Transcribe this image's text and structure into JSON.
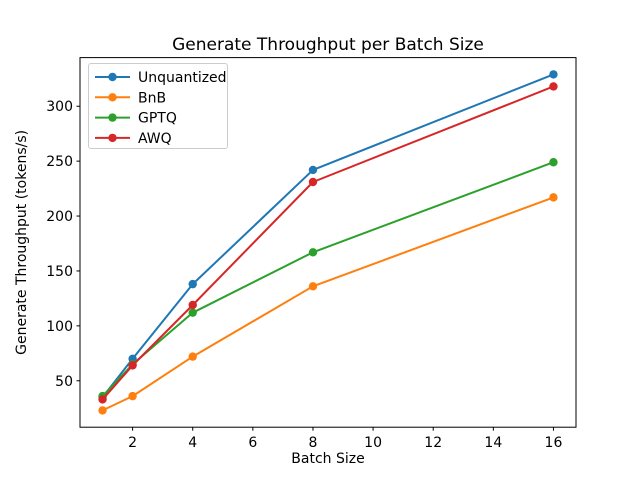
{
  "chart": {
    "title": "Generate Throughput per Batch Size",
    "xlabel": "Batch Size",
    "ylabel": "Generate Throughput (tokens/s)"
  },
  "chart_data": {
    "type": "line",
    "title": "Generate Throughput per Batch Size",
    "xlabel": "Batch Size",
    "ylabel": "Generate Throughput (tokens/s)",
    "x": [
      1,
      2,
      4,
      8,
      16
    ],
    "series": [
      {
        "name": "Unquantized",
        "color": "#1f77b4",
        "values": [
          35,
          70,
          138,
          242,
          329
        ]
      },
      {
        "name": "BnB",
        "color": "#ff7f0e",
        "values": [
          23,
          36,
          72,
          136,
          217
        ]
      },
      {
        "name": "GPTQ",
        "color": "#2ca02c",
        "values": [
          36,
          65,
          112,
          167,
          249
        ]
      },
      {
        "name": "AWQ",
        "color": "#d62728",
        "values": [
          33,
          64,
          119,
          231,
          318
        ]
      }
    ],
    "xticks": [
      2,
      4,
      6,
      8,
      10,
      12,
      14,
      16
    ],
    "yticks": [
      50,
      100,
      150,
      200,
      250,
      300
    ],
    "xlim": [
      0.25,
      16.75
    ],
    "ylim": [
      7.7,
      344.3
    ],
    "grid": false,
    "marker": "o",
    "legend_position": "upper left",
    "colors": {
      "text": "#000000",
      "frame": "#000000",
      "legend_border": "#cccccc",
      "background": "#ffffff"
    }
  }
}
